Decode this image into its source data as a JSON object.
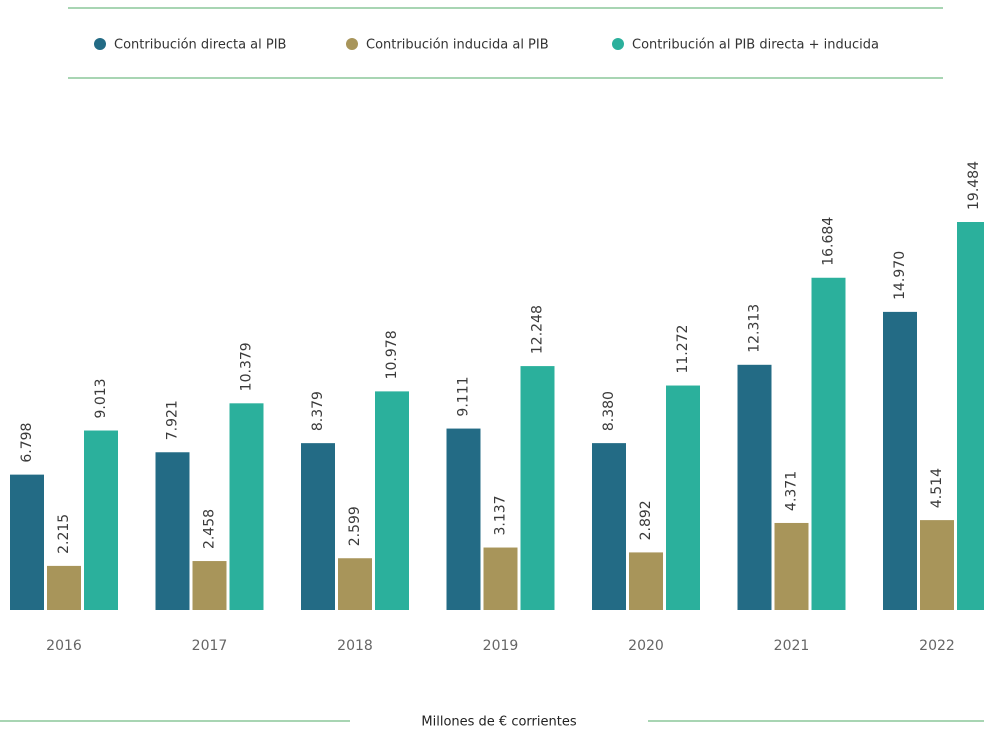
{
  "chart_data": {
    "type": "bar",
    "categories": [
      "2016",
      "2017",
      "2018",
      "2019",
      "2020",
      "2021",
      "2022"
    ],
    "series": [
      {
        "name": "Contribución directa al PIB",
        "color": "#236b85",
        "values": [
          6798,
          7921,
          8379,
          9111,
          8380,
          12313,
          14970
        ],
        "value_labels": [
          "6.798",
          "7.921",
          "8.379",
          "9.111",
          "8.380",
          "12.313",
          "14.970"
        ]
      },
      {
        "name": "Contribución inducida al PIB",
        "color": "#a8955a",
        "values": [
          2215,
          2458,
          2599,
          3137,
          2892,
          4371,
          4514
        ],
        "value_labels": [
          "2.215",
          "2.458",
          "2.599",
          "3.137",
          "2.892",
          "4.371",
          "4.514"
        ]
      },
      {
        "name": "Contribución al PIB directa + inducida",
        "color": "#2bb09c",
        "values": [
          9013,
          10379,
          10978,
          12248,
          11272,
          16684,
          19484
        ],
        "value_labels": [
          "9.013",
          "10.379",
          "10.978",
          "12.248",
          "11.272",
          "16.684",
          "19.484"
        ]
      }
    ],
    "x_label": "Millones de € corrientes"
  }
}
